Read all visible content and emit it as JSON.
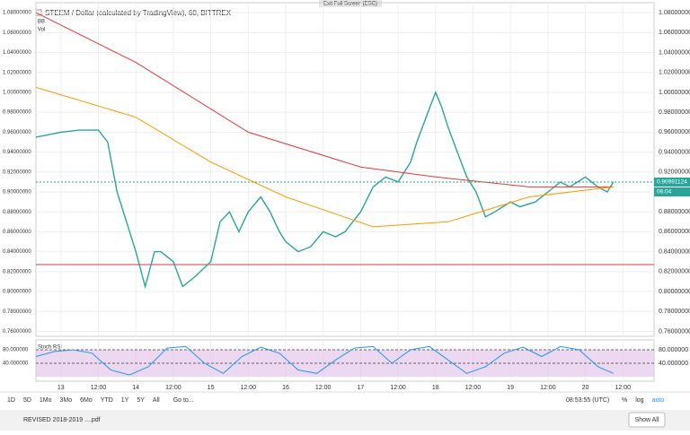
{
  "chart_data": {
    "type": "line",
    "title": "STEEM / Dollar (calculated by TradingView), 60, BITTREX",
    "xlim": [
      -8,
      190
    ],
    "xticks": [
      {
        "value": 0,
        "label": "13"
      },
      {
        "value": 12,
        "label": "12:00"
      },
      {
        "value": 24,
        "label": "14"
      },
      {
        "value": 36,
        "label": "12:00"
      },
      {
        "value": 48,
        "label": "15"
      },
      {
        "value": 60,
        "label": "12:00"
      },
      {
        "value": 72,
        "label": "16"
      },
      {
        "value": 84,
        "label": "12:00"
      },
      {
        "value": 96,
        "label": "17"
      },
      {
        "value": 108,
        "label": "12:00"
      },
      {
        "value": 120,
        "label": "18"
      },
      {
        "value": 132,
        "label": "12:00"
      },
      {
        "value": 144,
        "label": "19"
      },
      {
        "value": 156,
        "label": "12:00"
      },
      {
        "value": 168,
        "label": "20"
      },
      {
        "value": 180,
        "label": "12:00"
      }
    ],
    "ylim": [
      0.755,
      1.09
    ],
    "yticks": [
      {
        "value": 0.76,
        "label": "0.76000000"
      },
      {
        "value": 0.78,
        "label": "0.78000000"
      },
      {
        "value": 0.8,
        "label": "0.80000000"
      },
      {
        "value": 0.82,
        "label": "0.82000000"
      },
      {
        "value": 0.84,
        "label": "0.84000000"
      },
      {
        "value": 0.86,
        "label": "0.86000000"
      },
      {
        "value": 0.88,
        "label": "0.88000000"
      },
      {
        "value": 0.9,
        "label": "0.90000000"
      },
      {
        "value": 0.92,
        "label": "0.92000000"
      },
      {
        "value": 0.94,
        "label": "0.94000000"
      },
      {
        "value": 0.96,
        "label": "0.96000000"
      },
      {
        "value": 0.98,
        "label": "0.98000000"
      },
      {
        "value": 1.0,
        "label": "1.00000000"
      },
      {
        "value": 1.02,
        "label": "1.02000000"
      },
      {
        "value": 1.04,
        "label": "1.04000000"
      },
      {
        "value": 1.06,
        "label": "1.06000000"
      },
      {
        "value": 1.08,
        "label": "1.08000000"
      }
    ],
    "grid": true,
    "series": [
      {
        "name": "STEEM",
        "color": "#26a69a",
        "x": [
          -8,
          0,
          6,
          12,
          15,
          18,
          21,
          24,
          27,
          30,
          32,
          36,
          39,
          43,
          48,
          51,
          54,
          57,
          60,
          64,
          67,
          70,
          72,
          76,
          80,
          84,
          88,
          91,
          96,
          100,
          104,
          108,
          112,
          114,
          117,
          120,
          122,
          124,
          127,
          130,
          133,
          136,
          139,
          144,
          147,
          152,
          156,
          160,
          163,
          168,
          172,
          175,
          177
        ],
        "values": [
          0.955,
          0.96,
          0.962,
          0.962,
          0.95,
          0.9,
          0.87,
          0.84,
          0.805,
          0.84,
          0.84,
          0.83,
          0.805,
          0.815,
          0.83,
          0.87,
          0.88,
          0.86,
          0.88,
          0.895,
          0.88,
          0.86,
          0.85,
          0.84,
          0.845,
          0.86,
          0.855,
          0.86,
          0.88,
          0.905,
          0.915,
          0.91,
          0.93,
          0.95,
          0.975,
          1.0,
          0.985,
          0.965,
          0.94,
          0.915,
          0.9,
          0.875,
          0.88,
          0.89,
          0.885,
          0.89,
          0.9,
          0.91,
          0.905,
          0.915,
          0.905,
          0.9,
          0.91
        ]
      },
      {
        "name": "BB",
        "color": "#e53935",
        "x": [
          -8,
          24,
          60,
          96,
          120,
          150,
          177
        ],
        "values": [
          1.08,
          1.03,
          0.96,
          0.925,
          0.915,
          0.905,
          0.905
        ]
      },
      {
        "name": "Vol",
        "color": "#ff9800",
        "x": [
          -8,
          24,
          48,
          72,
          100,
          124,
          150,
          177
        ],
        "values": [
          1.005,
          0.975,
          0.93,
          0.895,
          0.865,
          0.87,
          0.895,
          0.905
        ]
      }
    ],
    "hline": {
      "value": 0.827,
      "color": "#e53935"
    },
    "price_line": {
      "value": 0.90991124,
      "label": "0.90991124",
      "color": "#26a69a"
    },
    "countdown": "06:04",
    "stoch": {
      "name": "Stoch RSI",
      "color": "#2196f3",
      "ylim": [
        0,
        100
      ],
      "yticks": [
        {
          "value": 80,
          "label": "80.000000"
        },
        {
          "value": 40,
          "label": "40.000000"
        }
      ],
      "x": [
        -8,
        -2,
        4,
        10,
        16,
        22,
        28,
        34,
        40,
        46,
        52,
        58,
        64,
        70,
        76,
        82,
        88,
        94,
        100,
        106,
        112,
        118,
        124,
        130,
        136,
        142,
        148,
        154,
        160,
        166,
        172,
        177
      ],
      "values": [
        60,
        75,
        80,
        70,
        20,
        5,
        30,
        85,
        90,
        40,
        10,
        60,
        88,
        70,
        20,
        10,
        50,
        85,
        90,
        40,
        80,
        90,
        50,
        10,
        30,
        70,
        88,
        60,
        90,
        80,
        30,
        10
      ]
    }
  },
  "ui": {
    "exit": "Exit Full Screen (ESC)",
    "ranges": [
      "1D",
      "5D",
      "1Mo",
      "3Mo",
      "6Mo",
      "YTD",
      "1Y",
      "5Y",
      "All"
    ],
    "goto": "Go to...",
    "clock": "08:53:55 (UTC)",
    "toggles": [
      "%",
      "log",
      "auto"
    ],
    "download": "REVISED 2018-2019 ....pdf",
    "show_all": "Show All"
  }
}
